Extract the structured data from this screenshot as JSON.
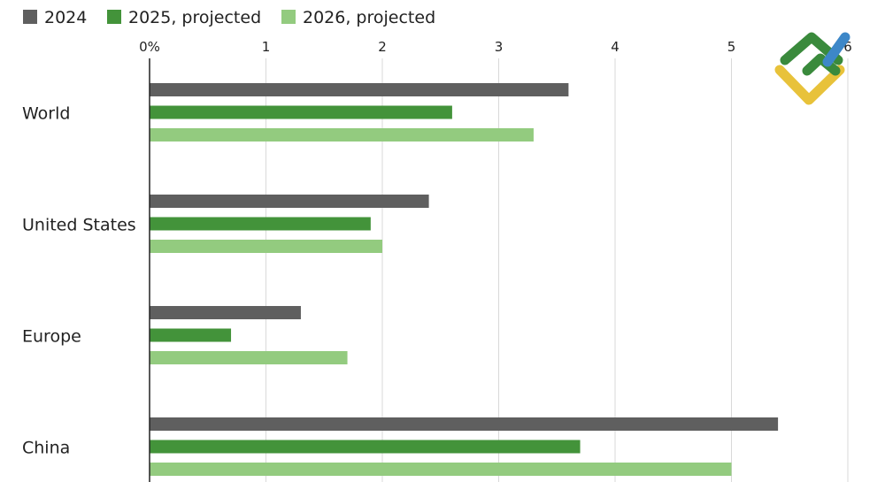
{
  "chart_data": {
    "type": "bar",
    "orientation": "horizontal",
    "title": "",
    "xlabel": "",
    "ylabel": "",
    "categories": [
      "World",
      "United States",
      "Europe",
      "China"
    ],
    "series": [
      {
        "name": "2024",
        "color": "#5f5f5f",
        "values": [
          3.6,
          2.4,
          1.3,
          5.4
        ]
      },
      {
        "name": "2025, projected",
        "color": "#43933a",
        "values": [
          2.6,
          1.9,
          0.7,
          3.7
        ]
      },
      {
        "name": "2026, projected",
        "color": "#93cb7f",
        "values": [
          3.3,
          2.0,
          1.7,
          5.0
        ]
      }
    ],
    "xlim": [
      0,
      6
    ],
    "x_ticks": [
      0,
      1,
      2,
      3,
      4,
      5,
      6
    ],
    "x_tick_labels": [
      "0%",
      "1",
      "2",
      "3",
      "4",
      "5",
      "6"
    ],
    "axis_position": "top",
    "grid": true,
    "legend_position": "top-left"
  },
  "logo": {
    "name": "fx-logo",
    "colors": [
      "#3a8a3c",
      "#e8c23a",
      "#3d87c8"
    ]
  }
}
